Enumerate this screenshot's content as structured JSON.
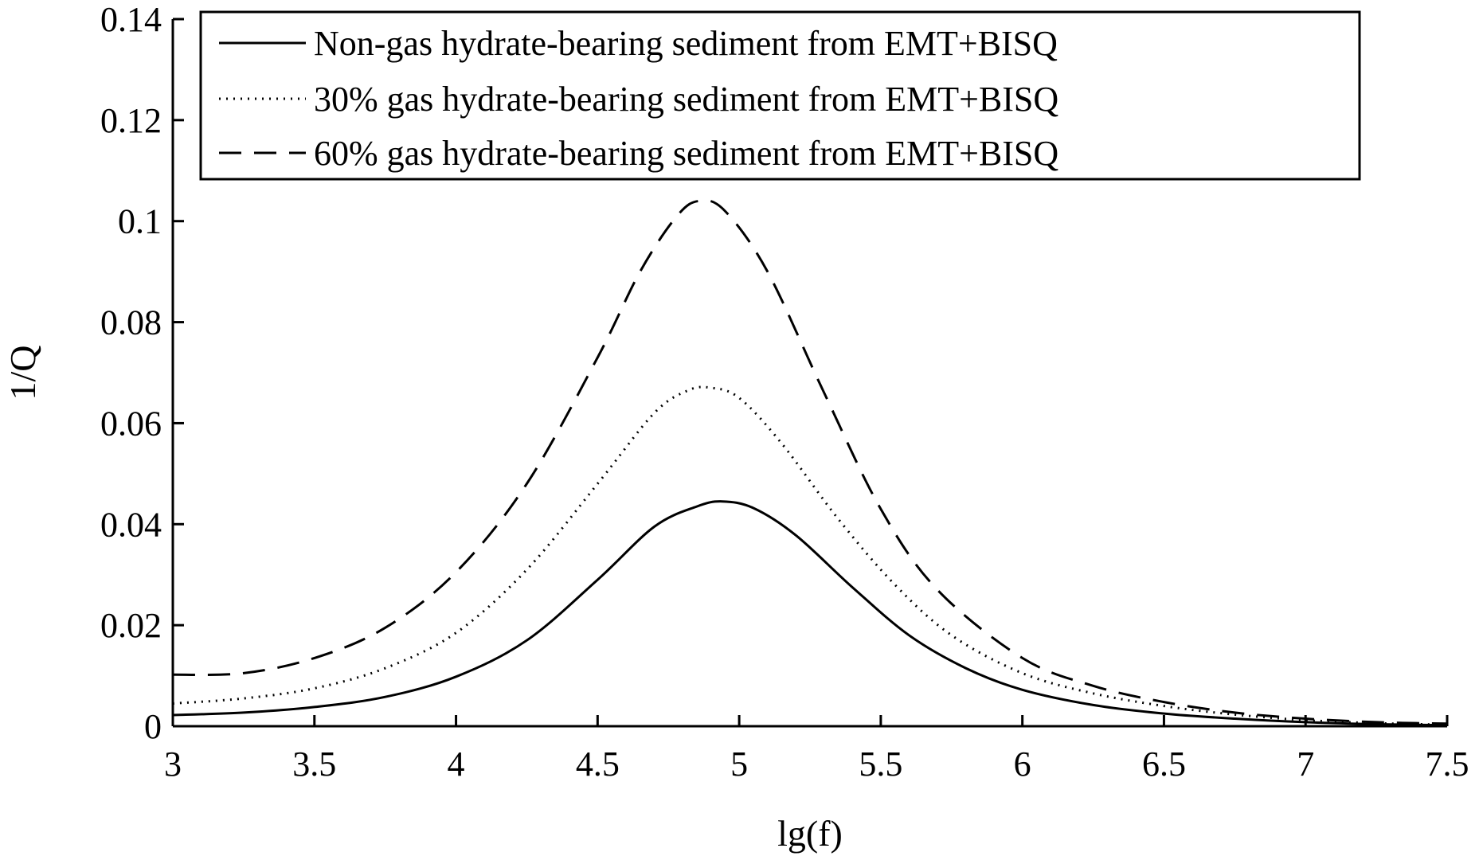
{
  "chart_data": {
    "type": "line",
    "title": "",
    "xlabel": "lg(f)",
    "ylabel": "1/Q",
    "xlim": [
      3,
      7.5
    ],
    "ylim": [
      0,
      0.14
    ],
    "xticks": [
      3,
      3.5,
      4,
      4.5,
      5,
      5.5,
      6,
      6.5,
      7,
      7.5
    ],
    "yticks": [
      0,
      0.02,
      0.04,
      0.06,
      0.08,
      0.1,
      0.12,
      0.14
    ],
    "xtick_labels": [
      "3",
      "3.5",
      "4",
      "4.5",
      "5",
      "5.5",
      "6",
      "6.5",
      "7",
      "7.5"
    ],
    "ytick_labels": [
      "0",
      "0.02",
      "0.04",
      "0.06",
      "0.08",
      "0.1",
      "0.12",
      "0.14"
    ],
    "grid": false,
    "legend_position": "top-right",
    "series": [
      {
        "name": "Non-gas hydrate-bearing sediment from EMT+BISQ",
        "style": "solid",
        "x": [
          3.0,
          3.25,
          3.5,
          3.75,
          4.0,
          4.25,
          4.5,
          4.7,
          4.85,
          4.94,
          5.05,
          5.2,
          5.4,
          5.6,
          5.8,
          6.0,
          6.25,
          6.5,
          6.75,
          7.0,
          7.25,
          7.5
        ],
        "values": [
          0.0022,
          0.0027,
          0.0038,
          0.0058,
          0.0098,
          0.017,
          0.029,
          0.0395,
          0.0435,
          0.0445,
          0.0432,
          0.0378,
          0.0275,
          0.018,
          0.0115,
          0.0072,
          0.0042,
          0.0025,
          0.0015,
          0.0008,
          0.0004,
          0.0002
        ]
      },
      {
        "name": "30% gas hydrate-bearing sediment from EMT+BISQ",
        "style": "dotted",
        "x": [
          3.0,
          3.25,
          3.5,
          3.75,
          4.0,
          4.25,
          4.5,
          4.7,
          4.82,
          4.9,
          5.0,
          5.15,
          5.35,
          5.55,
          5.75,
          6.0,
          6.25,
          6.5,
          6.75,
          7.0,
          7.25,
          7.5
        ],
        "values": [
          0.0045,
          0.0055,
          0.0075,
          0.0115,
          0.0185,
          0.031,
          0.048,
          0.062,
          0.0665,
          0.067,
          0.065,
          0.056,
          0.041,
          0.028,
          0.018,
          0.0105,
          0.0065,
          0.004,
          0.0023,
          0.0012,
          0.0006,
          0.0003
        ]
      },
      {
        "name": "60% gas hydrate-bearing sediment from EMT+BISQ",
        "style": "dashed",
        "x": [
          3.0,
          3.25,
          3.5,
          3.75,
          4.0,
          4.25,
          4.5,
          4.65,
          4.78,
          4.86,
          4.95,
          5.1,
          5.3,
          5.5,
          5.7,
          6.0,
          6.25,
          6.5,
          6.75,
          7.0,
          7.25,
          7.5
        ],
        "values": [
          0.0102,
          0.0105,
          0.0135,
          0.0195,
          0.0305,
          0.048,
          0.073,
          0.09,
          0.101,
          0.104,
          0.102,
          0.09,
          0.066,
          0.043,
          0.027,
          0.0135,
          0.008,
          0.0048,
          0.0027,
          0.0015,
          0.0008,
          0.0005
        ]
      }
    ]
  }
}
